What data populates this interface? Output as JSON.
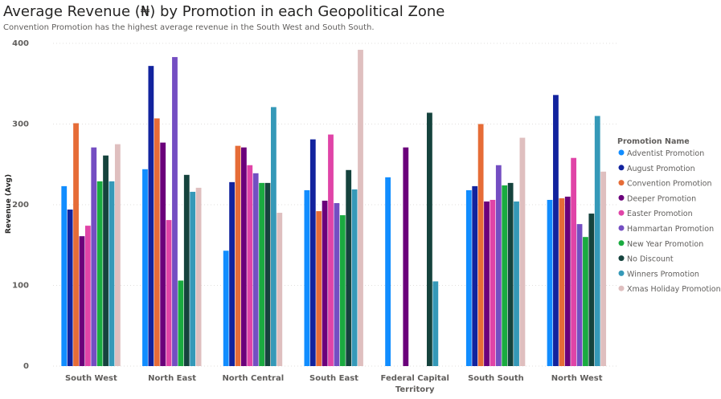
{
  "header": {
    "title": "Average Revenue (₦) by Promotion in each Geopolitical Zone",
    "subtitle": "Convention Promotion has the highest average revenue in the South West and South South."
  },
  "chart_data": {
    "type": "bar",
    "ylabel": "Revenue (Avg)",
    "xlabel": "",
    "ylim": [
      0,
      400
    ],
    "yticks": [
      0,
      100,
      200,
      300,
      400
    ],
    "grid": true,
    "legend_placement": "right",
    "legend_title": "Promotion Name",
    "categories": [
      [
        "South West"
      ],
      [
        "North East"
      ],
      [
        "North Central"
      ],
      [
        "South East"
      ],
      [
        "Federal Capital",
        "Territory"
      ],
      [
        "South South"
      ],
      [
        "North West"
      ]
    ],
    "series": [
      {
        "name": "Adventist Promotion",
        "color": "#118DFF",
        "values": [
          223,
          244,
          143,
          218,
          234,
          218,
          206
        ]
      },
      {
        "name": "August Promotion",
        "color": "#12239E",
        "values": [
          194,
          372,
          228,
          281,
          null,
          223,
          336
        ]
      },
      {
        "name": "Convention Promotion",
        "color": "#E66C37",
        "values": [
          301,
          307,
          273,
          192,
          null,
          300,
          208
        ]
      },
      {
        "name": "Deeper Promotion",
        "color": "#6B007B",
        "values": [
          161,
          277,
          271,
          205,
          271,
          204,
          210
        ]
      },
      {
        "name": "Easter Promotion",
        "color": "#E044A7",
        "values": [
          174,
          181,
          249,
          287,
          null,
          206,
          258
        ]
      },
      {
        "name": "Hammartan Promotion",
        "color": "#744EC2",
        "values": [
          271,
          383,
          239,
          202,
          null,
          249,
          176
        ]
      },
      {
        "name": "New Year Promotion",
        "color": "#1AAB40",
        "values": [
          229,
          106,
          227,
          187,
          null,
          224,
          160
        ]
      },
      {
        "name": "No Discount",
        "color": "#15433D",
        "values": [
          261,
          237,
          227,
          243,
          314,
          227,
          189
        ]
      },
      {
        "name": "Winners Promotion",
        "color": "#3599B8",
        "values": [
          229,
          216,
          321,
          219,
          105,
          204,
          310
        ]
      },
      {
        "name": "Xmas Holiday Promotion",
        "color": "#DFBFBF",
        "values": [
          275,
          221,
          190,
          392,
          null,
          283,
          241
        ]
      }
    ]
  }
}
